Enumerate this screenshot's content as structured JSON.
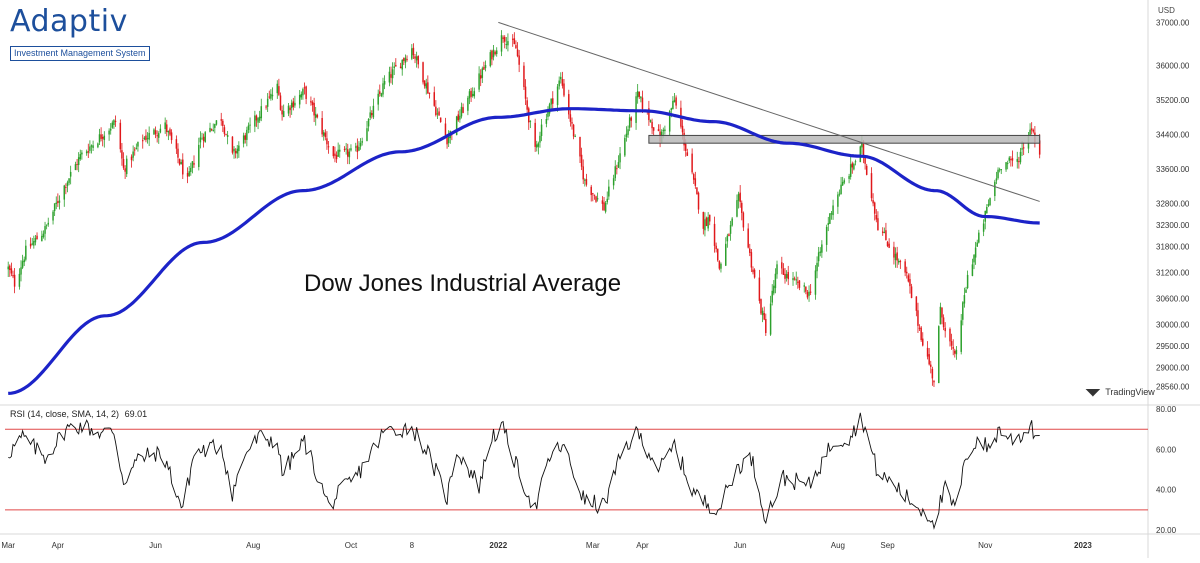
{
  "branding": {
    "logo_word": "Adaptiv",
    "logo_tagline": "Investment Management System"
  },
  "chart_data": [
    {
      "type": "candlestick",
      "title": "",
      "annotation": "Dow Jones Industrial Average",
      "currency_label": "USD",
      "y_ticks": [
        37000,
        36000,
        35200,
        34400,
        33600,
        32800,
        32300,
        31800,
        31200,
        30600,
        30000,
        29500,
        29000,
        28560
      ],
      "y_tick_labels": [
        "37000.00",
        "36000.00",
        "35200.00",
        "34400.00",
        "33600.00",
        "32800.00",
        "32300.00",
        "31800.00",
        "31200.00",
        "30600.00",
        "30000.00",
        "29500.00",
        "29000.00",
        "28560.00"
      ],
      "ylim": [
        28200,
        37450
      ],
      "x_labels": [
        {
          "date": "2021-03-01",
          "label": "Mar"
        },
        {
          "date": "2021-04-01",
          "label": "Apr"
        },
        {
          "date": "2021-06-01",
          "label": "Jun"
        },
        {
          "date": "2021-08-01",
          "label": "Aug"
        },
        {
          "date": "2021-10-01",
          "label": "Oct"
        },
        {
          "date": "2021-11-08",
          "label": "8"
        },
        {
          "date": "2022-01-01",
          "label": "2022"
        },
        {
          "date": "2022-03-01",
          "label": "Mar"
        },
        {
          "date": "2022-04-01",
          "label": "Apr"
        },
        {
          "date": "2022-06-01",
          "label": "Jun"
        },
        {
          "date": "2022-08-01",
          "label": "Aug"
        },
        {
          "date": "2022-09-01",
          "label": "Sep"
        },
        {
          "date": "2022-11-01",
          "label": "Nov"
        },
        {
          "date": "2023-01-01",
          "label": "2023"
        }
      ],
      "price_keypoints": [
        [
          "2021-03-01",
          31300
        ],
        [
          "2021-03-05",
          30950
        ],
        [
          "2021-03-12",
          31700
        ],
        [
          "2021-03-24",
          32200
        ],
        [
          "2021-04-05",
          33200
        ],
        [
          "2021-04-15",
          33900
        ],
        [
          "2021-05-07",
          34700
        ],
        [
          "2021-05-12",
          33600
        ],
        [
          "2021-05-24",
          34300
        ],
        [
          "2021-06-07",
          34600
        ],
        [
          "2021-06-21",
          33300
        ],
        [
          "2021-06-29",
          34300
        ],
        [
          "2021-07-12",
          34800
        ],
        [
          "2021-07-19",
          33900
        ],
        [
          "2021-08-05",
          34900
        ],
        [
          "2021-08-16",
          35500
        ],
        [
          "2021-08-19",
          34900
        ],
        [
          "2021-09-02",
          35400
        ],
        [
          "2021-09-20",
          33900
        ],
        [
          "2021-10-04",
          34000
        ],
        [
          "2021-10-22",
          35600
        ],
        [
          "2021-11-08",
          36400
        ],
        [
          "2021-11-30",
          34300
        ],
        [
          "2021-12-03",
          34500
        ],
        [
          "2021-12-27",
          36200
        ],
        [
          "2022-01-04",
          36700
        ],
        [
          "2022-01-12",
          36400
        ],
        [
          "2022-01-24",
          34000
        ],
        [
          "2022-01-28",
          34600
        ],
        [
          "2022-02-09",
          35700
        ],
        [
          "2022-02-24",
          33300
        ],
        [
          "2022-03-08",
          32700
        ],
        [
          "2022-03-29",
          35300
        ],
        [
          "2022-04-12",
          34300
        ],
        [
          "2022-04-21",
          35200
        ],
        [
          "2022-05-09",
          32300
        ],
        [
          "2022-05-13",
          32500
        ],
        [
          "2022-05-19",
          31300
        ],
        [
          "2022-05-31",
          32900
        ],
        [
          "2022-06-13",
          30500
        ],
        [
          "2022-06-17",
          29900
        ],
        [
          "2022-06-24",
          31300
        ],
        [
          "2022-07-14",
          30700
        ],
        [
          "2022-07-29",
          32800
        ],
        [
          "2022-08-16",
          34100
        ],
        [
          "2022-08-26",
          32300
        ],
        [
          "2022-09-13",
          31100
        ],
        [
          "2022-09-23",
          29600
        ],
        [
          "2022-09-30",
          28700
        ],
        [
          "2022-10-04",
          30300
        ],
        [
          "2022-10-13",
          29200
        ],
        [
          "2022-10-21",
          31100
        ],
        [
          "2022-11-10",
          33700
        ],
        [
          "2022-11-21",
          33800
        ],
        [
          "2022-11-30",
          34600
        ],
        [
          "2022-12-05",
          33900
        ]
      ],
      "series": [
        {
          "name": "",
          "type": "moving_average",
          "color": "#1c23c8",
          "values": [
            [
              "2021-03-01",
              28400
            ],
            [
              "2021-05-01",
              30200
            ],
            [
              "2021-07-01",
              31900
            ],
            [
              "2021-09-01",
              33100
            ],
            [
              "2021-11-01",
              34000
            ],
            [
              "2022-01-01",
              34800
            ],
            [
              "2022-02-15",
              35000
            ],
            [
              "2022-04-01",
              34950
            ],
            [
              "2022-05-15",
              34700
            ],
            [
              "2022-07-01",
              34200
            ],
            [
              "2022-08-15",
              33900
            ],
            [
              "2022-10-01",
              33100
            ],
            [
              "2022-11-01",
              32500
            ],
            [
              "2022-12-05",
              32350
            ]
          ]
        }
      ],
      "trendline": {
        "color": "#666666",
        "points": [
          [
            "2022-01-01",
            37000
          ],
          [
            "2022-12-05",
            32850
          ]
        ]
      },
      "resistance_zone": {
        "x_from": "2022-04-05",
        "x_to": "2022-12-05",
        "y_from": 34200,
        "y_to": 34380,
        "fill": "#b8b8b8",
        "stroke": "#444444"
      },
      "colors": {
        "up": "#2ca02c",
        "down": "#e0181b"
      }
    },
    {
      "type": "line",
      "title": "",
      "legend_text": "RSI (14, close, SMA, 14, 2)",
      "legend_value": "69.01",
      "ylim": [
        18,
        82
      ],
      "y_ticks": [
        80,
        60,
        40,
        20
      ],
      "y_tick_labels": [
        "80.00",
        "60.00",
        "40.00",
        "20.00"
      ],
      "reference_lines": [
        {
          "value": 70,
          "color": "#e04848"
        },
        {
          "value": 30,
          "color": "#e04848"
        }
      ],
      "series": [
        {
          "name": "",
          "color": "#111111",
          "values": [
            [
              "2021-03-01",
              58
            ],
            [
              "2021-03-10",
              66
            ],
            [
              "2021-03-24",
              56
            ],
            [
              "2021-04-06",
              70
            ],
            [
              "2021-04-16",
              72
            ],
            [
              "2021-04-28",
              68
            ],
            [
              "2021-05-06",
              69
            ],
            [
              "2021-05-12",
              44
            ],
            [
              "2021-05-21",
              55
            ],
            [
              "2021-06-01",
              58
            ],
            [
              "2021-06-07",
              55
            ],
            [
              "2021-06-18",
              30
            ],
            [
              "2021-06-25",
              58
            ],
            [
              "2021-07-12",
              62
            ],
            [
              "2021-07-19",
              38
            ],
            [
              "2021-07-27",
              58
            ],
            [
              "2021-08-05",
              66
            ],
            [
              "2021-08-16",
              64
            ],
            [
              "2021-08-19",
              48
            ],
            [
              "2021-09-02",
              64
            ],
            [
              "2021-09-17",
              32
            ],
            [
              "2021-09-28",
              42
            ],
            [
              "2021-10-04",
              46
            ],
            [
              "2021-10-22",
              69
            ],
            [
              "2021-11-08",
              71
            ],
            [
              "2021-11-17",
              60
            ],
            [
              "2021-11-30",
              36
            ],
            [
              "2021-12-06",
              60
            ],
            [
              "2021-12-20",
              42
            ],
            [
              "2021-12-28",
              67
            ],
            [
              "2022-01-04",
              70
            ],
            [
              "2022-01-14",
              48
            ],
            [
              "2022-01-24",
              30
            ],
            [
              "2022-02-02",
              56
            ],
            [
              "2022-02-10",
              62
            ],
            [
              "2022-02-24",
              34
            ],
            [
              "2022-03-08",
              32
            ],
            [
              "2022-03-20",
              60
            ],
            [
              "2022-03-29",
              68
            ],
            [
              "2022-04-12",
              50
            ],
            [
              "2022-04-21",
              62
            ],
            [
              "2022-05-02",
              40
            ],
            [
              "2022-05-09",
              34
            ],
            [
              "2022-05-19",
              31
            ],
            [
              "2022-05-31",
              52
            ],
            [
              "2022-06-08",
              56
            ],
            [
              "2022-06-17",
              26
            ],
            [
              "2022-06-28",
              46
            ],
            [
              "2022-07-14",
              42
            ],
            [
              "2022-07-29",
              64
            ],
            [
              "2022-08-08",
              66
            ],
            [
              "2022-08-16",
              76
            ],
            [
              "2022-08-26",
              48
            ],
            [
              "2022-09-06",
              42
            ],
            [
              "2022-09-13",
              36
            ],
            [
              "2022-09-30",
              25
            ],
            [
              "2022-10-07",
              40
            ],
            [
              "2022-10-13",
              30
            ],
            [
              "2022-10-21",
              58
            ],
            [
              "2022-10-28",
              66
            ],
            [
              "2022-11-03",
              60
            ],
            [
              "2022-11-10",
              70
            ],
            [
              "2022-11-17",
              65
            ],
            [
              "2022-11-24",
              67
            ],
            [
              "2022-11-30",
              73
            ],
            [
              "2022-12-02",
              66
            ],
            [
              "2022-12-05",
              69
            ]
          ]
        }
      ]
    }
  ],
  "watermark": {
    "text": "TradingView",
    "logo": "tradingview-logo-icon"
  }
}
